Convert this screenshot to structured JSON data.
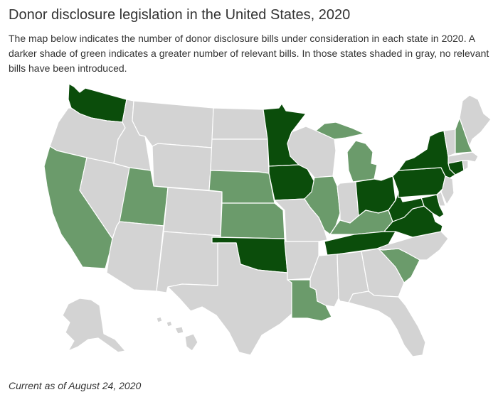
{
  "title": "Donor disclosure legislation in the United States, 2020",
  "subtitle": "The map below indicates the number of donor disclosure bills under consideration in each state in 2020. A darker shade of green indicates a greater number of relevant bills. In those states shaded in gray, no relevant bills have been introduced.",
  "footnote": "Current as of August 24, 2020",
  "colors": {
    "none": "#d3d3d3",
    "few": "#6b9b6b",
    "many": "#0b4d0b",
    "border": "#ffffff"
  },
  "state_levels": {
    "WA": "many",
    "OR": "none",
    "CA": "few",
    "NV": "none",
    "ID": "none",
    "MT": "none",
    "WY": "none",
    "UT": "few",
    "AZ": "none",
    "CO": "none",
    "NM": "none",
    "ND": "none",
    "SD": "none",
    "NE": "few",
    "KS": "few",
    "OK": "many",
    "TX": "none",
    "MN": "many",
    "IA": "many",
    "MO": "none",
    "AR": "none",
    "LA": "few",
    "WI": "none",
    "IL": "few",
    "MI": "few",
    "IN": "none",
    "OH": "many",
    "KY": "few",
    "TN": "many",
    "MS": "none",
    "AL": "none",
    "GA": "none",
    "FL": "none",
    "SC": "few",
    "NC": "none",
    "VA": "many",
    "WV": "many",
    "PA": "many",
    "NY": "many",
    "VT": "none",
    "NH": "few",
    "ME": "none",
    "MA": "none",
    "CT": "many",
    "RI": "none",
    "NJ": "none",
    "DE": "none",
    "MD": "many",
    "AK": "none",
    "HI": "none"
  }
}
